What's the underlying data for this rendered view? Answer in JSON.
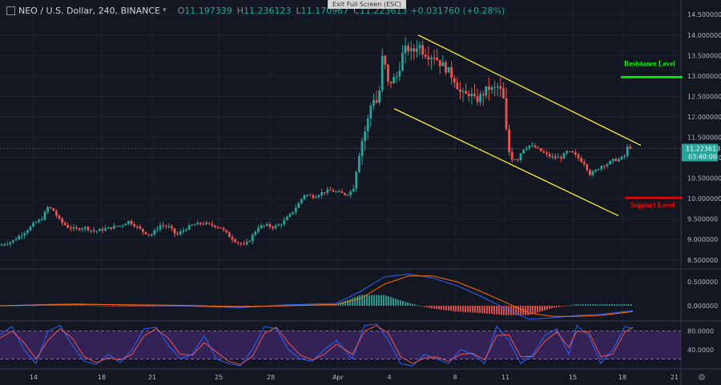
{
  "header": {
    "symbol": "NEO / U.S. Dollar, 240, BINANCE",
    "open_key": "O",
    "open": "11.197339",
    "high_key": "H",
    "high": "11.236123",
    "low_key": "L",
    "low": "11.170967",
    "close_key": "C",
    "close": "11.223613",
    "change": "+0.031760 (+0.28%)"
  },
  "fullscreen_hint": "Exit Full Screen (ESC)",
  "icons": {
    "layout": "square-icon",
    "caret": "chevron-down-icon",
    "settings": "gear-icon"
  },
  "colors": {
    "background": "#131722",
    "up": "#26a69a",
    "down": "#ef5350",
    "channel": "#ffeb3b",
    "resistance": "#00ff00",
    "support": "#ff0000",
    "macd": "#2962ff",
    "signal": "#ff6d00",
    "stoch_k": "#2962ff",
    "stoch_d": "#ef5350",
    "stoch_band": "#4a2a7a"
  },
  "chart_data": {
    "type": "candlestick",
    "price_axis": {
      "ticks": [
        "14.500000",
        "14.000000",
        "13.500000",
        "13.000000",
        "12.500000",
        "12.000000",
        "11.500000",
        "11.000000",
        "10.500000",
        "10.000000",
        "9.500000",
        "9.000000",
        "8.500000"
      ],
      "tick_values": [
        14.5,
        14,
        13.5,
        13,
        12.5,
        12,
        11.5,
        11,
        10.5,
        10,
        9.5,
        9,
        8.5
      ],
      "ylim": [
        8.3,
        14.7
      ]
    },
    "last_price": {
      "value": 11.223613,
      "label": "11.223613",
      "countdown": "03:40:00"
    },
    "x_axis": {
      "ticks": [
        "14",
        "18",
        "21",
        "25",
        "28",
        "Apr",
        "4",
        "8",
        "11",
        "15",
        "18",
        "21"
      ]
    },
    "path": [
      [
        0,
        8.85
      ],
      [
        5,
        8.9
      ],
      [
        15,
        8.95
      ],
      [
        25,
        9.1
      ],
      [
        35,
        9.25
      ],
      [
        43,
        9.4
      ],
      [
        52,
        9.5
      ],
      [
        60,
        9.8
      ],
      [
        67,
        9.7
      ],
      [
        75,
        9.45
      ],
      [
        85,
        9.3
      ],
      [
        95,
        9.25
      ],
      [
        105,
        9.3
      ],
      [
        118,
        9.2
      ],
      [
        130,
        9.25
      ],
      [
        140,
        9.3
      ],
      [
        152,
        9.35
      ],
      [
        160,
        9.45
      ],
      [
        168,
        9.35
      ],
      [
        178,
        9.2
      ],
      [
        188,
        9.1
      ],
      [
        200,
        9.35
      ],
      [
        212,
        9.3
      ],
      [
        220,
        9.1
      ],
      [
        230,
        9.25
      ],
      [
        240,
        9.35
      ],
      [
        252,
        9.4
      ],
      [
        265,
        9.35
      ],
      [
        275,
        9.3
      ],
      [
        285,
        9.1
      ],
      [
        295,
        8.95
      ],
      [
        305,
        8.85
      ],
      [
        312,
        9.0
      ],
      [
        322,
        9.3
      ],
      [
        332,
        9.35
      ],
      [
        342,
        9.3
      ],
      [
        352,
        9.4
      ],
      [
        362,
        9.6
      ],
      [
        370,
        9.8
      ],
      [
        380,
        10.1
      ],
      [
        392,
        10.05
      ],
      [
        402,
        10.15
      ],
      [
        412,
        10.2
      ],
      [
        422,
        10.15
      ],
      [
        432,
        10.1
      ],
      [
        440,
        10.2
      ],
      [
        450,
        11.3
      ],
      [
        458,
        11.8
      ],
      [
        465,
        12.5
      ],
      [
        472,
        12.3
      ],
      [
        478,
        13.6
      ],
      [
        484,
        12.8
      ],
      [
        490,
        12.9
      ],
      [
        496,
        13.0
      ],
      [
        502,
        13.5
      ],
      [
        508,
        13.7
      ],
      [
        515,
        13.55
      ],
      [
        522,
        13.8
      ],
      [
        528,
        13.6
      ],
      [
        536,
        13.5
      ],
      [
        542,
        13.5
      ],
      [
        550,
        13.3
      ],
      [
        556,
        13.2
      ],
      [
        562,
        13.05
      ],
      [
        568,
        12.9
      ],
      [
        574,
        12.6
      ],
      [
        580,
        12.5
      ],
      [
        586,
        12.6
      ],
      [
        592,
        12.4
      ],
      [
        598,
        12.45
      ],
      [
        604,
        12.6
      ],
      [
        610,
        12.7
      ],
      [
        616,
        12.65
      ],
      [
        622,
        12.75
      ],
      [
        628,
        12.5
      ],
      [
        634,
        11.2
      ],
      [
        640,
        11.0
      ],
      [
        646,
        10.95
      ],
      [
        652,
        11.2
      ],
      [
        660,
        11.3
      ],
      [
        668,
        11.25
      ],
      [
        676,
        11.15
      ],
      [
        684,
        11.05
      ],
      [
        692,
        11.0
      ],
      [
        700,
        11.0
      ],
      [
        708,
        11.15
      ],
      [
        716,
        11.1
      ],
      [
        724,
        10.95
      ],
      [
        730,
        10.85
      ],
      [
        736,
        10.6
      ],
      [
        742,
        10.65
      ],
      [
        750,
        10.8
      ],
      [
        758,
        10.85
      ],
      [
        766,
        10.95
      ],
      [
        772,
        10.95
      ],
      [
        780,
        11.05
      ],
      [
        784,
        11.3
      ],
      [
        790,
        11.2
      ]
    ],
    "channel": [
      {
        "from": [
          492,
          12.2
        ],
        "to": [
          772,
          9.58
        ]
      },
      {
        "from": [
          522,
          14.0
        ],
        "to": [
          800,
          11.3
        ]
      }
    ],
    "annotations": [
      {
        "label": "Resistance Level",
        "value": 12.97
      },
      {
        "label": "Support Level",
        "value": 10.02
      }
    ],
    "macd": {
      "ticks": [
        "0.500000",
        "0.000000"
      ],
      "tick_values": [
        0.5,
        0.0
      ],
      "ylim": [
        -0.3,
        0.75
      ],
      "macd_line": [
        [
          0,
          0.0
        ],
        [
          60,
          0.03
        ],
        [
          100,
          0.04
        ],
        [
          160,
          0.01
        ],
        [
          220,
          0.0
        ],
        [
          300,
          -0.04
        ],
        [
          360,
          0.02
        ],
        [
          420,
          0.05
        ],
        [
          450,
          0.3
        ],
        [
          480,
          0.6
        ],
        [
          510,
          0.66
        ],
        [
          540,
          0.58
        ],
        [
          570,
          0.42
        ],
        [
          600,
          0.2
        ],
        [
          630,
          -0.05
        ],
        [
          660,
          -0.28
        ],
        [
          690,
          -0.25
        ],
        [
          720,
          -0.2
        ],
        [
          750,
          -0.18
        ],
        [
          790,
          -0.1
        ]
      ],
      "signal_line": [
        [
          0,
          0.0
        ],
        [
          60,
          0.02
        ],
        [
          100,
          0.03
        ],
        [
          160,
          0.02
        ],
        [
          220,
          0.01
        ],
        [
          300,
          -0.02
        ],
        [
          360,
          0.0
        ],
        [
          420,
          0.03
        ],
        [
          450,
          0.15
        ],
        [
          480,
          0.45
        ],
        [
          510,
          0.62
        ],
        [
          540,
          0.62
        ],
        [
          570,
          0.5
        ],
        [
          600,
          0.3
        ],
        [
          630,
          0.08
        ],
        [
          660,
          -0.15
        ],
        [
          690,
          -0.22
        ],
        [
          720,
          -0.22
        ],
        [
          750,
          -0.2
        ],
        [
          790,
          -0.12
        ]
      ]
    },
    "stochastic": {
      "ticks": [
        "80.0000",
        "40.0000"
      ],
      "tick_values": [
        80,
        40
      ],
      "band": [
        20,
        80
      ],
      "ylim": [
        0,
        100
      ],
      "k_line": [
        [
          0,
          72
        ],
        [
          15,
          90
        ],
        [
          30,
          40
        ],
        [
          45,
          10
        ],
        [
          60,
          80
        ],
        [
          75,
          92
        ],
        [
          90,
          50
        ],
        [
          105,
          15
        ],
        [
          120,
          8
        ],
        [
          135,
          30
        ],
        [
          150,
          12
        ],
        [
          165,
          40
        ],
        [
          180,
          85
        ],
        [
          195,
          88
        ],
        [
          210,
          50
        ],
        [
          225,
          20
        ],
        [
          240,
          30
        ],
        [
          255,
          70
        ],
        [
          270,
          20
        ],
        [
          285,
          10
        ],
        [
          300,
          5
        ],
        [
          315,
          40
        ],
        [
          330,
          90
        ],
        [
          345,
          85
        ],
        [
          360,
          40
        ],
        [
          375,
          20
        ],
        [
          390,
          15
        ],
        [
          405,
          40
        ],
        [
          420,
          60
        ],
        [
          440,
          20
        ],
        [
          455,
          92
        ],
        [
          470,
          95
        ],
        [
          485,
          60
        ],
        [
          500,
          10
        ],
        [
          515,
          5
        ],
        [
          530,
          30
        ],
        [
          545,
          20
        ],
        [
          560,
          10
        ],
        [
          575,
          40
        ],
        [
          590,
          30
        ],
        [
          605,
          10
        ],
        [
          620,
          90
        ],
        [
          635,
          60
        ],
        [
          650,
          10
        ],
        [
          665,
          30
        ],
        [
          680,
          70
        ],
        [
          695,
          85
        ],
        [
          710,
          30
        ],
        [
          720,
          92
        ],
        [
          735,
          70
        ],
        [
          750,
          10
        ],
        [
          765,
          40
        ],
        [
          780,
          90
        ],
        [
          790,
          85
        ]
      ],
      "d_line": [
        [
          0,
          65
        ],
        [
          15,
          80
        ],
        [
          30,
          55
        ],
        [
          45,
          20
        ],
        [
          60,
          60
        ],
        [
          75,
          85
        ],
        [
          90,
          65
        ],
        [
          105,
          25
        ],
        [
          120,
          12
        ],
        [
          135,
          22
        ],
        [
          150,
          18
        ],
        [
          165,
          30
        ],
        [
          180,
          70
        ],
        [
          195,
          85
        ],
        [
          210,
          65
        ],
        [
          225,
          30
        ],
        [
          240,
          28
        ],
        [
          255,
          55
        ],
        [
          270,
          35
        ],
        [
          285,
          15
        ],
        [
          300,
          8
        ],
        [
          315,
          25
        ],
        [
          330,
          75
        ],
        [
          345,
          88
        ],
        [
          360,
          55
        ],
        [
          375,
          28
        ],
        [
          390,
          18
        ],
        [
          405,
          30
        ],
        [
          420,
          52
        ],
        [
          440,
          30
        ],
        [
          455,
          80
        ],
        [
          470,
          92
        ],
        [
          485,
          75
        ],
        [
          500,
          25
        ],
        [
          515,
          10
        ],
        [
          530,
          22
        ],
        [
          545,
          24
        ],
        [
          560,
          15
        ],
        [
          575,
          30
        ],
        [
          590,
          32
        ],
        [
          605,
          18
        ],
        [
          620,
          70
        ],
        [
          635,
          72
        ],
        [
          650,
          25
        ],
        [
          665,
          25
        ],
        [
          680,
          58
        ],
        [
          695,
          78
        ],
        [
          710,
          45
        ],
        [
          720,
          80
        ],
        [
          735,
          78
        ],
        [
          750,
          25
        ],
        [
          765,
          30
        ],
        [
          780,
          78
        ],
        [
          790,
          88
        ]
      ]
    }
  }
}
